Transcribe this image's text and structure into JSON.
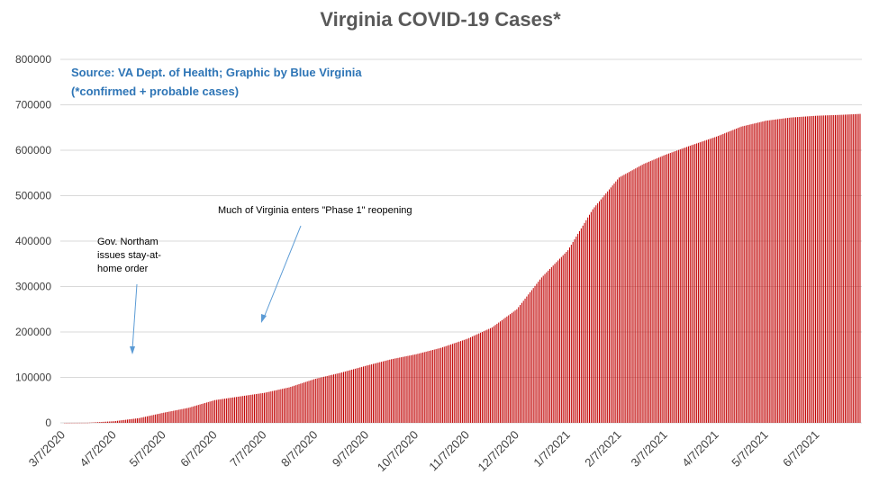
{
  "chart_data": {
    "type": "bar",
    "title": "Virginia COVID-19 Cases*",
    "source_line1": "Source: VA Dept. of Health; Graphic by Blue Virginia",
    "source_line2": "(*confirmed + probable cases)",
    "ylim": [
      0,
      800000
    ],
    "yticks": [
      "0",
      "100000",
      "200000",
      "300000",
      "400000",
      "500000",
      "600000",
      "700000",
      "800000"
    ],
    "xticks": [
      "3/7/2020",
      "4/7/2020",
      "5/7/2020",
      "6/7/2020",
      "7/7/2020",
      "8/7/2020",
      "9/7/2020",
      "10/7/2020",
      "11/7/2020",
      "12/7/2020",
      "1/7/2021",
      "2/7/2021",
      "3/7/2021",
      "4/7/2021",
      "5/7/2021",
      "6/7/2021"
    ],
    "bar_color": "#C00000",
    "grid": true,
    "annotations": [
      {
        "lines": [
          "Gov. Northam",
          "issues stay-at-",
          "home order"
        ]
      },
      {
        "lines": [
          "Much of Virginia enters \"Phase 1\" reopening"
        ]
      }
    ],
    "series": [
      {
        "values": [
          {
            "x": "3/7/2020",
            "y": 0
          },
          {
            "x": "3/22/2020",
            "y": 220
          },
          {
            "x": "4/7/2020",
            "y": 3600
          },
          {
            "x": "4/22/2020",
            "y": 10300
          },
          {
            "x": "5/7/2020",
            "y": 22300
          },
          {
            "x": "5/22/2020",
            "y": 33000
          },
          {
            "x": "6/7/2020",
            "y": 50000
          },
          {
            "x": "6/22/2020",
            "y": 58000
          },
          {
            "x": "7/7/2020",
            "y": 66000
          },
          {
            "x": "7/22/2020",
            "y": 78000
          },
          {
            "x": "8/7/2020",
            "y": 97000
          },
          {
            "x": "8/22/2020",
            "y": 110000
          },
          {
            "x": "9/7/2020",
            "y": 126000
          },
          {
            "x": "9/22/2020",
            "y": 140000
          },
          {
            "x": "10/7/2020",
            "y": 151000
          },
          {
            "x": "10/22/2020",
            "y": 165000
          },
          {
            "x": "11/7/2020",
            "y": 185000
          },
          {
            "x": "11/22/2020",
            "y": 210000
          },
          {
            "x": "12/7/2020",
            "y": 250000
          },
          {
            "x": "12/22/2020",
            "y": 320000
          },
          {
            "x": "1/7/2021",
            "y": 380000
          },
          {
            "x": "1/22/2021",
            "y": 470000
          },
          {
            "x": "2/7/2021",
            "y": 540000
          },
          {
            "x": "2/22/2021",
            "y": 570000
          },
          {
            "x": "3/7/2021",
            "y": 590000
          },
          {
            "x": "3/22/2021",
            "y": 610000
          },
          {
            "x": "4/7/2021",
            "y": 630000
          },
          {
            "x": "4/22/2021",
            "y": 652000
          },
          {
            "x": "5/7/2021",
            "y": 665000
          },
          {
            "x": "5/22/2021",
            "y": 672000
          },
          {
            "x": "6/7/2021",
            "y": 676000
          },
          {
            "x": "6/22/2021",
            "y": 678000
          },
          {
            "x": "7/3/2021",
            "y": 680000
          }
        ]
      }
    ]
  }
}
